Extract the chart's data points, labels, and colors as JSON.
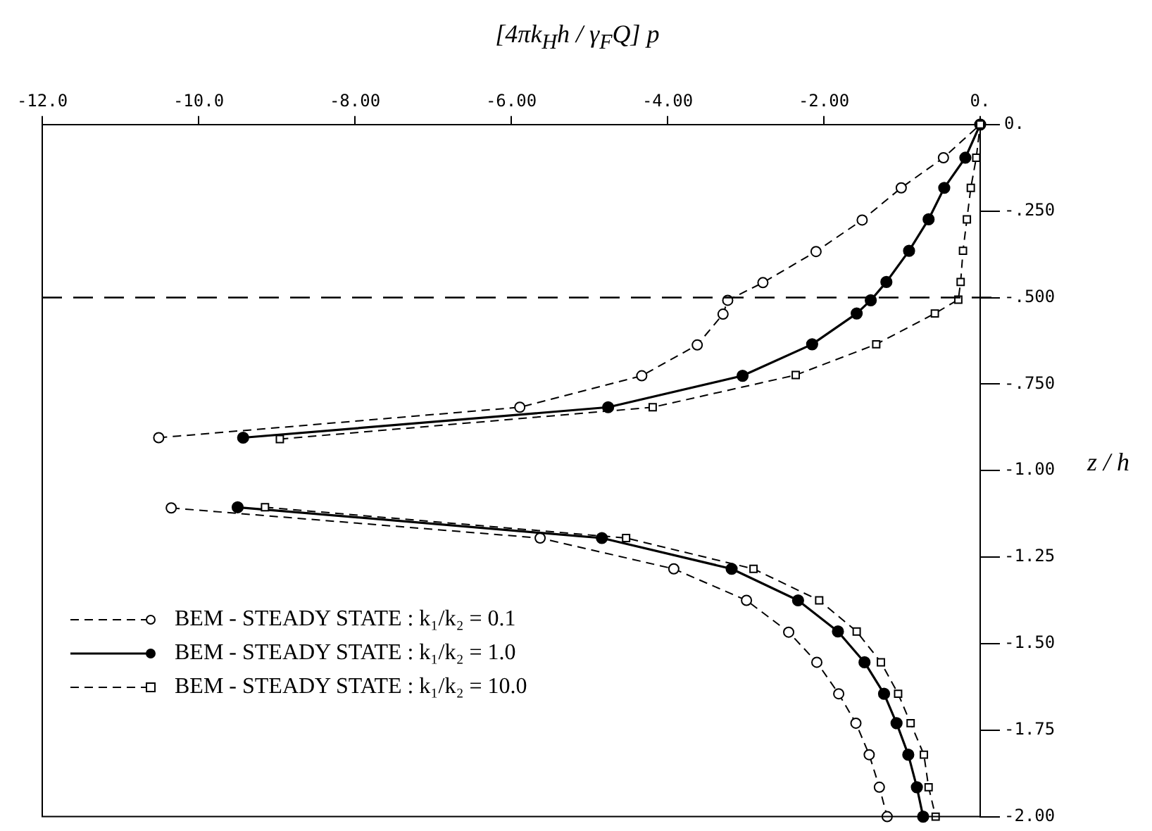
{
  "chart_data": {
    "type": "line",
    "xlabel": "[4πk$_{H}$h / γ$_{F}$Q] p",
    "ylabel": "z / h",
    "xlim": [
      -12,
      0
    ],
    "ylim": [
      -2,
      0
    ],
    "xticks": [
      {
        "value": -12,
        "label": "-12.0"
      },
      {
        "value": -10,
        "label": "-10.0"
      },
      {
        "value": -8,
        "label": "-8.00"
      },
      {
        "value": -6,
        "label": "-6.00"
      },
      {
        "value": -4,
        "label": "-4.00"
      },
      {
        "value": -2,
        "label": "-2.00"
      },
      {
        "value": 0,
        "label": "0."
      }
    ],
    "yticks": [
      {
        "value": 0,
        "label": "0."
      },
      {
        "value": -0.25,
        "label": "-.250"
      },
      {
        "value": -0.5,
        "label": "-.500"
      },
      {
        "value": -0.75,
        "label": "-.750"
      },
      {
        "value": -1,
        "label": "-1.00"
      },
      {
        "value": -1.25,
        "label": "-1.25"
      },
      {
        "value": -1.5,
        "label": "-1.50"
      },
      {
        "value": -1.75,
        "label": "-1.75"
      },
      {
        "value": -2,
        "label": "-2.00"
      }
    ],
    "grid": false,
    "legend": "bottom left",
    "ref_lines": [
      {
        "axis": "y",
        "value": -0.5,
        "line_style": "dashed",
        "color": "#000000"
      }
    ],
    "series": [
      {
        "name": "BEM - STEADY STATE : k₁/k₂ = 0.1",
        "color": "#000000",
        "marker": "circle",
        "line_style": "dashed",
        "x": [
          -10.51,
          -5.89,
          -4.33,
          -3.62,
          -3.29,
          -3.23,
          -2.78,
          -2.1,
          -1.51,
          -1.01,
          -0.47,
          0,
          null,
          -10.35,
          -5.63,
          -3.92,
          -2.99,
          -2.45,
          -2.09,
          -1.81,
          -1.59,
          -1.42,
          -1.29,
          -1.19
        ],
        "values": [
          -0.905,
          -0.817,
          -0.726,
          -0.637,
          -0.548,
          -0.508,
          -0.457,
          -0.367,
          -0.276,
          -0.183,
          -0.096,
          0,
          null,
          -1.108,
          -1.195,
          -1.284,
          -1.375,
          -1.467,
          -1.554,
          -1.645,
          -1.73,
          -1.821,
          -1.915,
          -2.0
        ]
      },
      {
        "name": "BEM - STEADY STATE : k₁/k₂ = 1.0",
        "color": "#000000",
        "marker": "circle",
        "line_style": "solid",
        "x": [
          -9.43,
          -4.76,
          -3.04,
          -2.15,
          -1.58,
          -1.4,
          -1.2,
          -0.91,
          -0.66,
          -0.46,
          -0.19,
          0,
          null,
          -9.5,
          -4.84,
          -3.18,
          -2.33,
          -1.82,
          -1.48,
          -1.23,
          -1.07,
          -0.92,
          -0.81,
          -0.73
        ],
        "values": [
          -0.905,
          -0.817,
          -0.726,
          -0.635,
          -0.546,
          -0.508,
          -0.455,
          -0.365,
          -0.274,
          -0.183,
          -0.096,
          0,
          null,
          -1.106,
          -1.195,
          -1.284,
          -1.375,
          -1.465,
          -1.554,
          -1.645,
          -1.73,
          -1.821,
          -1.915,
          -2.0
        ]
      },
      {
        "name": "BEM - STEADY STATE : k₁/k₂ = 10.0",
        "color": "#000000",
        "marker": "square",
        "line_style": "dashed",
        "x": [
          -8.96,
          -4.19,
          -2.36,
          -1.33,
          -0.58,
          -0.28,
          -0.25,
          -0.22,
          -0.17,
          -0.12,
          -0.05,
          0,
          null,
          -9.15,
          -4.53,
          -2.9,
          -2.06,
          -1.58,
          -1.27,
          -1.05,
          -0.89,
          -0.72,
          -0.66,
          -0.57
        ],
        "values": [
          -0.909,
          -0.817,
          -0.724,
          -0.635,
          -0.546,
          -0.506,
          -0.455,
          -0.365,
          -0.274,
          -0.183,
          -0.096,
          0,
          null,
          -1.106,
          -1.195,
          -1.284,
          -1.375,
          -1.465,
          -1.554,
          -1.645,
          -1.73,
          -1.821,
          -1.915,
          -2.0
        ]
      }
    ]
  }
}
